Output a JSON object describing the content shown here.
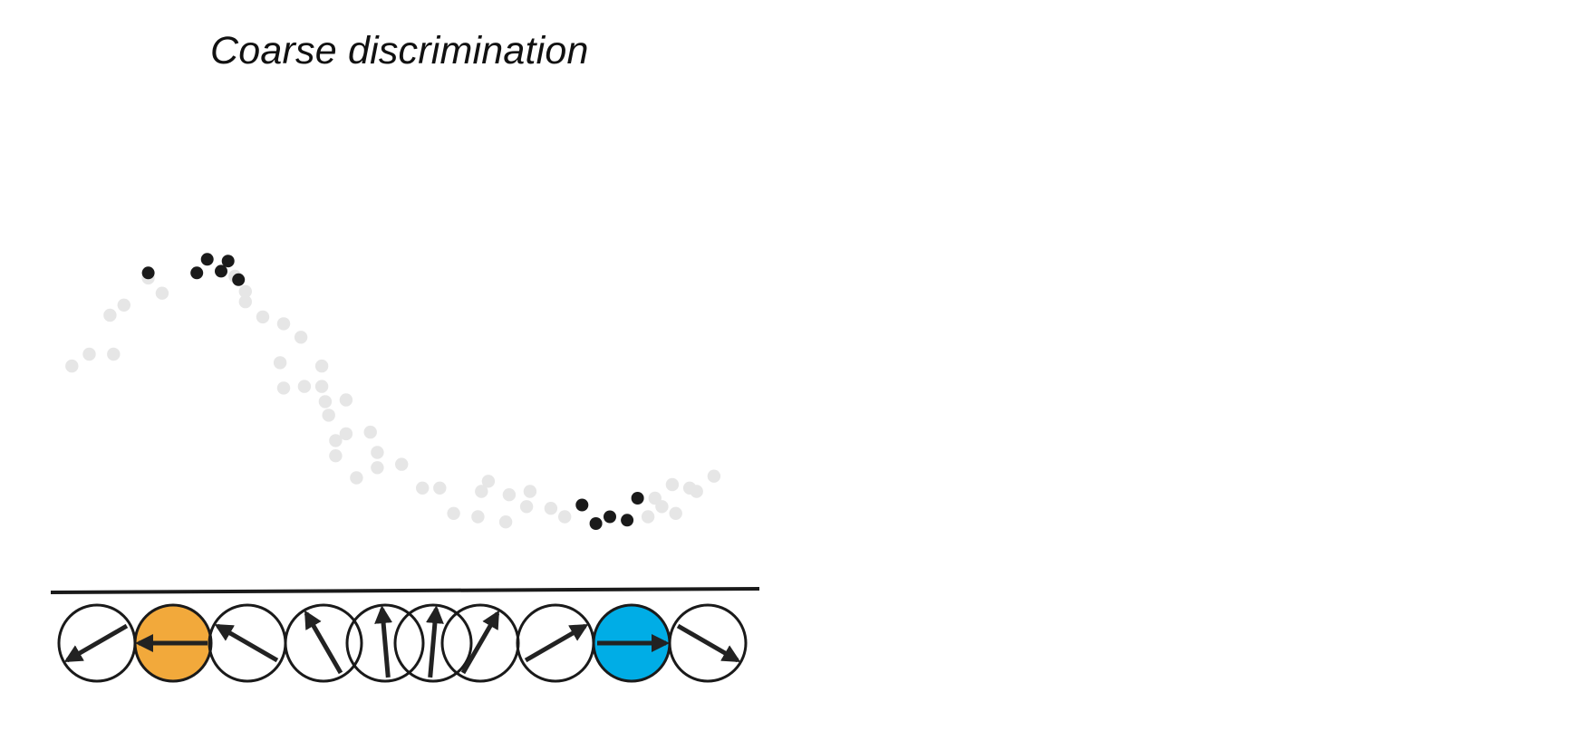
{
  "title": "Coarse discrimination",
  "colors": {
    "highlight_dot": "#1a1a1a",
    "background_dot": "#e6e6e6",
    "baseline": "#1a1a1a",
    "neuron_outline": "#1a1a1a",
    "arrow": "#222222",
    "left_target_fill": "#f2a93b",
    "right_target_fill": "#00ade6"
  },
  "chart_data": {
    "type": "scatter",
    "title": "Coarse discrimination",
    "xlabel": "",
    "ylabel": "",
    "grid": false,
    "axis_ticks": false,
    "xlim": [
      0,
      100
    ],
    "ylim": [
      0,
      100
    ],
    "series": [
      {
        "role": "background",
        "points": [
          [
            2,
            62
          ],
          [
            4.5,
            65.5
          ],
          [
            8,
            65.5
          ],
          [
            7.5,
            77
          ],
          [
            9.5,
            80
          ],
          [
            13,
            88
          ],
          [
            15,
            83.5
          ],
          [
            25.5,
            88.5
          ],
          [
            27,
            84
          ],
          [
            27,
            81
          ],
          [
            29.5,
            76.5
          ],
          [
            32.5,
            74.5
          ],
          [
            35,
            70.5
          ],
          [
            32,
            63
          ],
          [
            38,
            62
          ],
          [
            32.5,
            55.5
          ],
          [
            35.5,
            56
          ],
          [
            38,
            56
          ],
          [
            38.5,
            51.5
          ],
          [
            41.5,
            52
          ],
          [
            39,
            47.5
          ],
          [
            41.5,
            42
          ],
          [
            45,
            42.5
          ],
          [
            40,
            40
          ],
          [
            46,
            36.5
          ],
          [
            40,
            35.5
          ],
          [
            46,
            32
          ],
          [
            49.5,
            33
          ],
          [
            43,
            29
          ],
          [
            52.5,
            26
          ],
          [
            55,
            26
          ],
          [
            57,
            18.5
          ],
          [
            61,
            25
          ],
          [
            62,
            28
          ],
          [
            60.5,
            17.5
          ],
          [
            65,
            24
          ],
          [
            64.5,
            16
          ],
          [
            68,
            25
          ],
          [
            67.5,
            20.5
          ],
          [
            71,
            20
          ],
          [
            73,
            17.5
          ],
          [
            86,
            23
          ],
          [
            87,
            20.5
          ],
          [
            89,
            18.5
          ],
          [
            85,
            17.5
          ],
          [
            88.5,
            27
          ],
          [
            91,
            26
          ],
          [
            92,
            25
          ],
          [
            94.5,
            29.5
          ]
        ]
      },
      {
        "role": "highlighted",
        "points": [
          [
            13,
            89.5
          ],
          [
            20,
            89.5
          ],
          [
            21.5,
            93.5
          ],
          [
            24.5,
            93
          ],
          [
            23.5,
            90
          ],
          [
            26,
            87.5
          ],
          [
            75.5,
            21
          ],
          [
            77.5,
            15.5
          ],
          [
            79.5,
            17.5
          ],
          [
            82,
            16.5
          ],
          [
            83.5,
            23
          ]
        ]
      }
    ]
  },
  "population": {
    "neurons": [
      {
        "id": "n1",
        "preferred_angle_deg": 210,
        "highlight": "none"
      },
      {
        "id": "n2",
        "preferred_angle_deg": 180,
        "highlight": "left"
      },
      {
        "id": "n3",
        "preferred_angle_deg": 150,
        "highlight": "none"
      },
      {
        "id": "n4",
        "preferred_angle_deg": 120,
        "highlight": "none"
      },
      {
        "id": "n5",
        "preferred_angle_deg": 95,
        "highlight": "none"
      },
      {
        "id": "n6",
        "preferred_angle_deg": 85,
        "highlight": "none"
      },
      {
        "id": "n7",
        "preferred_angle_deg": 60,
        "highlight": "none"
      },
      {
        "id": "n8",
        "preferred_angle_deg": 30,
        "highlight": "none"
      },
      {
        "id": "n9",
        "preferred_angle_deg": 0,
        "highlight": "right"
      },
      {
        "id": "n10",
        "preferred_angle_deg": -30,
        "highlight": "none"
      }
    ]
  }
}
